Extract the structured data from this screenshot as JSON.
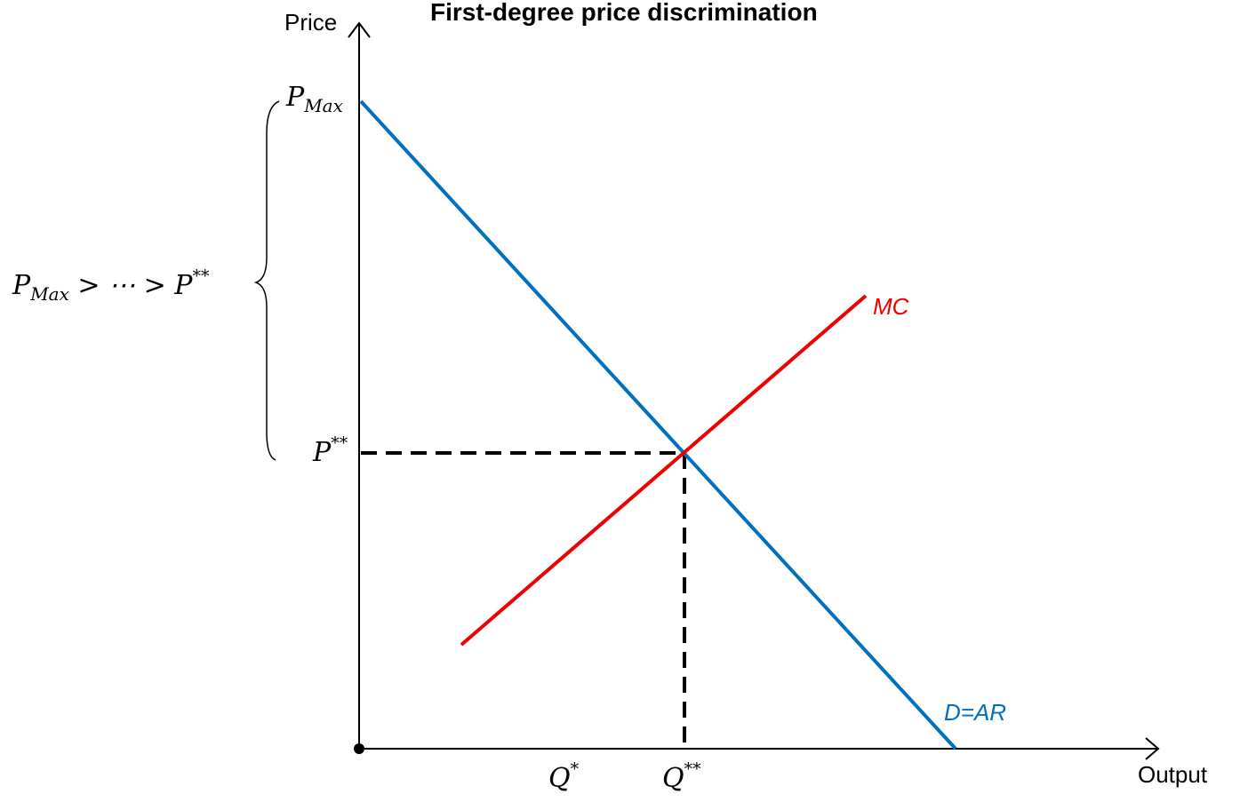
{
  "title": "First-degree price discrimination",
  "axes": {
    "y_label": "Price",
    "x_label": "Output"
  },
  "curves": {
    "demand": {
      "label": "D=AR",
      "color": "#0070C0"
    },
    "mc": {
      "label": "MC",
      "color": "#EE0000"
    }
  },
  "price_labels": {
    "pmax": {
      "base": "P",
      "sub": "Max"
    },
    "pstar2": {
      "base": "P",
      "sup": "**"
    }
  },
  "quantity_labels": {
    "q1": {
      "base": "Q",
      "sup": "*"
    },
    "q2": {
      "base": "Q",
      "sup": "**"
    }
  },
  "brace_text": {
    "left": "P",
    "sub": "Max",
    "middle": " > ⋯ > P",
    "sup": "**"
  },
  "colors": {
    "axis": "#000000",
    "guide": "#000000"
  }
}
